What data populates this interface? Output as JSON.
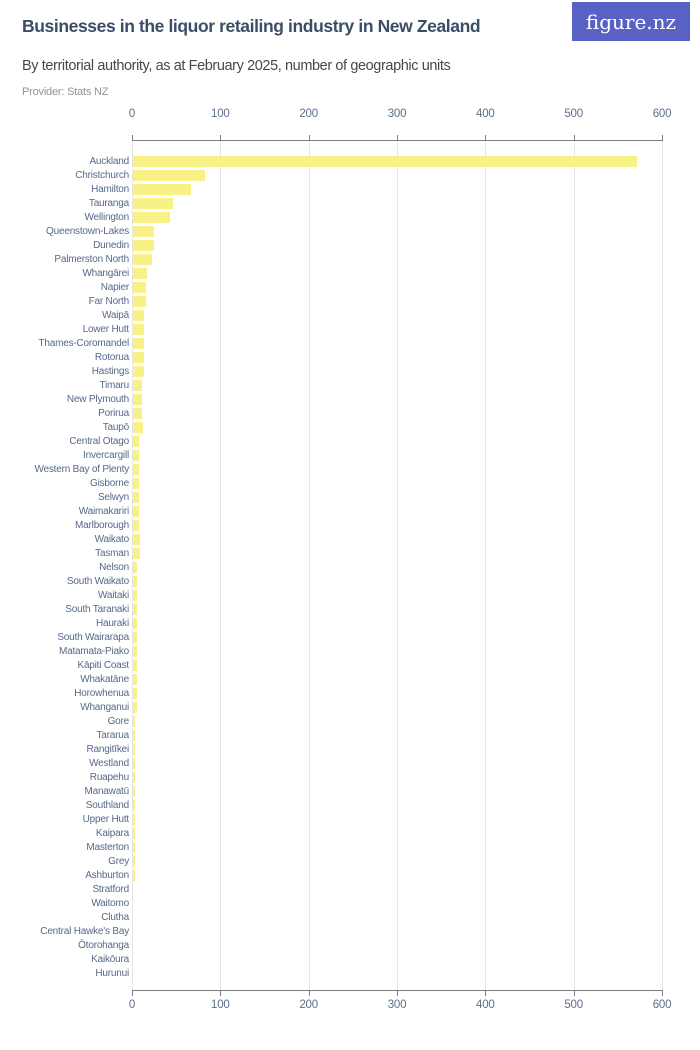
{
  "header": {
    "title": "Businesses in the liquor retailing industry in New Zealand",
    "subtitle": "By territorial authority, as at February 2025, number of geographic units",
    "provider": "Provider: Stats NZ",
    "logo_text": "figure.nz"
  },
  "colors": {
    "bar": "#F8F186",
    "title": "#3A4E68",
    "subtitle": "#45484F",
    "provider": "#90939A",
    "category_label": "#56688A",
    "axis_label": "#5C6F8E",
    "axis_line": "#777E88",
    "gridline": "#E6E6E9",
    "logo_bg": "#5A61C5",
    "logo_text": "#FFFFFF"
  },
  "chart_data": {
    "type": "bar",
    "orientation": "horizontal",
    "title": "Businesses in the liquor retailing industry in New Zealand",
    "subtitle": "By territorial authority, as at February 2025, number of geographic units",
    "xlabel": "",
    "ylabel": "",
    "xlim": [
      0,
      600
    ],
    "x_ticks": [
      0,
      100,
      200,
      300,
      400,
      500,
      600
    ],
    "grid": true,
    "axis_positions": "top-and-bottom",
    "categories": [
      "Auckland",
      "Christchurch",
      "Hamilton",
      "Tauranga",
      "Wellington",
      "Queenstown-Lakes",
      "Dunedin",
      "Palmerston North",
      "Whangārei",
      "Napier",
      "Far North",
      "Waipā",
      "Lower Hutt",
      "Thames-Coromandel",
      "Rotorua",
      "Hastings",
      "Timaru",
      "New Plymouth",
      "Porirua",
      "Taupō",
      "Central Otago",
      "Invercargill",
      "Western Bay of Plenty",
      "Gisborne",
      "Selwyn",
      "Waimakariri",
      "Marlborough",
      "Waikato",
      "Tasman",
      "Nelson",
      "South Waikato",
      "Waitaki",
      "South Taranaki",
      "Hauraki",
      "South Wairarapa",
      "Matamata-Piako",
      "Kāpiti Coast",
      "Whakatāne",
      "Horowhenua",
      "Whanganui",
      "Gore",
      "Tararua",
      "Rangitīkei",
      "Westland",
      "Ruapehu",
      "Manawatū",
      "Southland",
      "Upper Hutt",
      "Kaipara",
      "Masterton",
      "Grey",
      "Ashburton",
      "Stratford",
      "Waitomo",
      "Clutha",
      "Central Hawke's Bay",
      "Ōtorohanga",
      "Kaikōura",
      "Hurunui"
    ],
    "values": [
      570,
      81,
      66,
      45,
      42,
      24,
      24,
      21,
      16,
      15,
      15,
      13,
      13,
      12,
      13,
      13,
      10,
      10,
      10,
      11,
      7,
      7,
      7,
      7,
      7,
      7,
      7,
      8,
      8,
      4,
      4,
      4,
      4,
      4,
      4,
      4,
      4,
      4,
      4,
      4,
      2,
      2,
      2,
      2,
      2,
      2,
      2,
      2,
      2,
      2,
      2,
      2,
      0,
      0,
      0,
      0,
      0,
      0,
      0
    ]
  }
}
